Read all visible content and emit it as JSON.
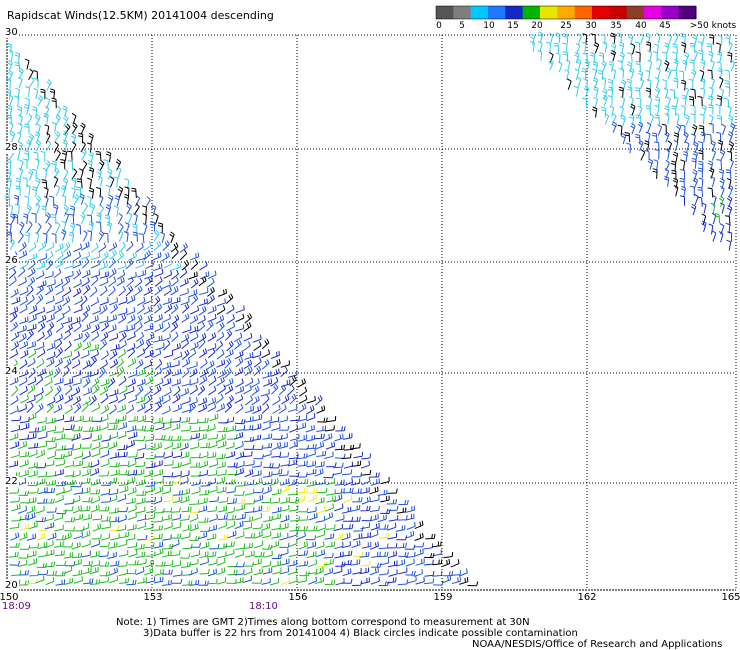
{
  "title": "Rapidscat Winds(12.5KM) 20141004 descending",
  "legend": {
    "labels": [
      "0",
      "5",
      "10",
      "15",
      "20",
      "25",
      "30",
      "35",
      "40",
      "45",
      ">50 knots"
    ],
    "colors": [
      "#555555",
      "#7f7f7f",
      "#00c8ff",
      "#1e78ff",
      "#1428c8",
      "#00b400",
      "#e6e600",
      "#ffaa00",
      "#ff6400",
      "#e60000",
      "#c80000",
      "#8c3c28",
      "#e600e6",
      "#9600c8",
      "#500078"
    ]
  },
  "lat_labels": [
    "30",
    "28",
    "26",
    "24",
    "22",
    "20"
  ],
  "lon_labels": [
    "150",
    "153",
    "156",
    "159",
    "162",
    "165"
  ],
  "time_labels": [
    "18:09",
    "18:10"
  ],
  "note_line1": "Note: 1) Times are GMT 2)Times along bottom correspond to measurement at 30N",
  "note_line2": "3)Data buffer is 22 hrs from 20141004 4) Black circles indicate possible contamination",
  "credit": "NOAA/NESDIS/Office of Research and Applications",
  "wind_colors": {
    "contaminated": "#000000",
    "light": "#33ccee",
    "moderate": "#2255dd",
    "strong": "#1a2ad0",
    "green": "#22bb22",
    "yellow": "#eeee22"
  }
}
